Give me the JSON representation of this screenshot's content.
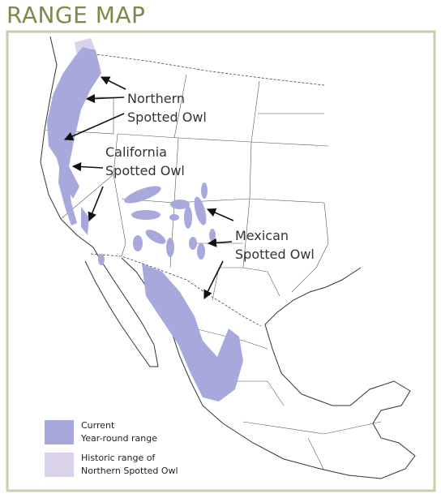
{
  "header": {
    "title": "RANGE MAP"
  },
  "labels": [
    {
      "lines": [
        "Northern",
        "Spotted Owl"
      ]
    },
    {
      "lines": [
        "California",
        "Spotted Owl"
      ]
    },
    {
      "lines": [
        "Mexican",
        "Spotted Owl"
      ]
    }
  ],
  "legend": [
    {
      "lines": [
        "Current",
        "Year-round range"
      ],
      "color": "#a7a9dc"
    },
    {
      "lines": [
        "Historic range of",
        "Northern Spotted Owl"
      ],
      "color": "#d9d2ea"
    }
  ]
}
